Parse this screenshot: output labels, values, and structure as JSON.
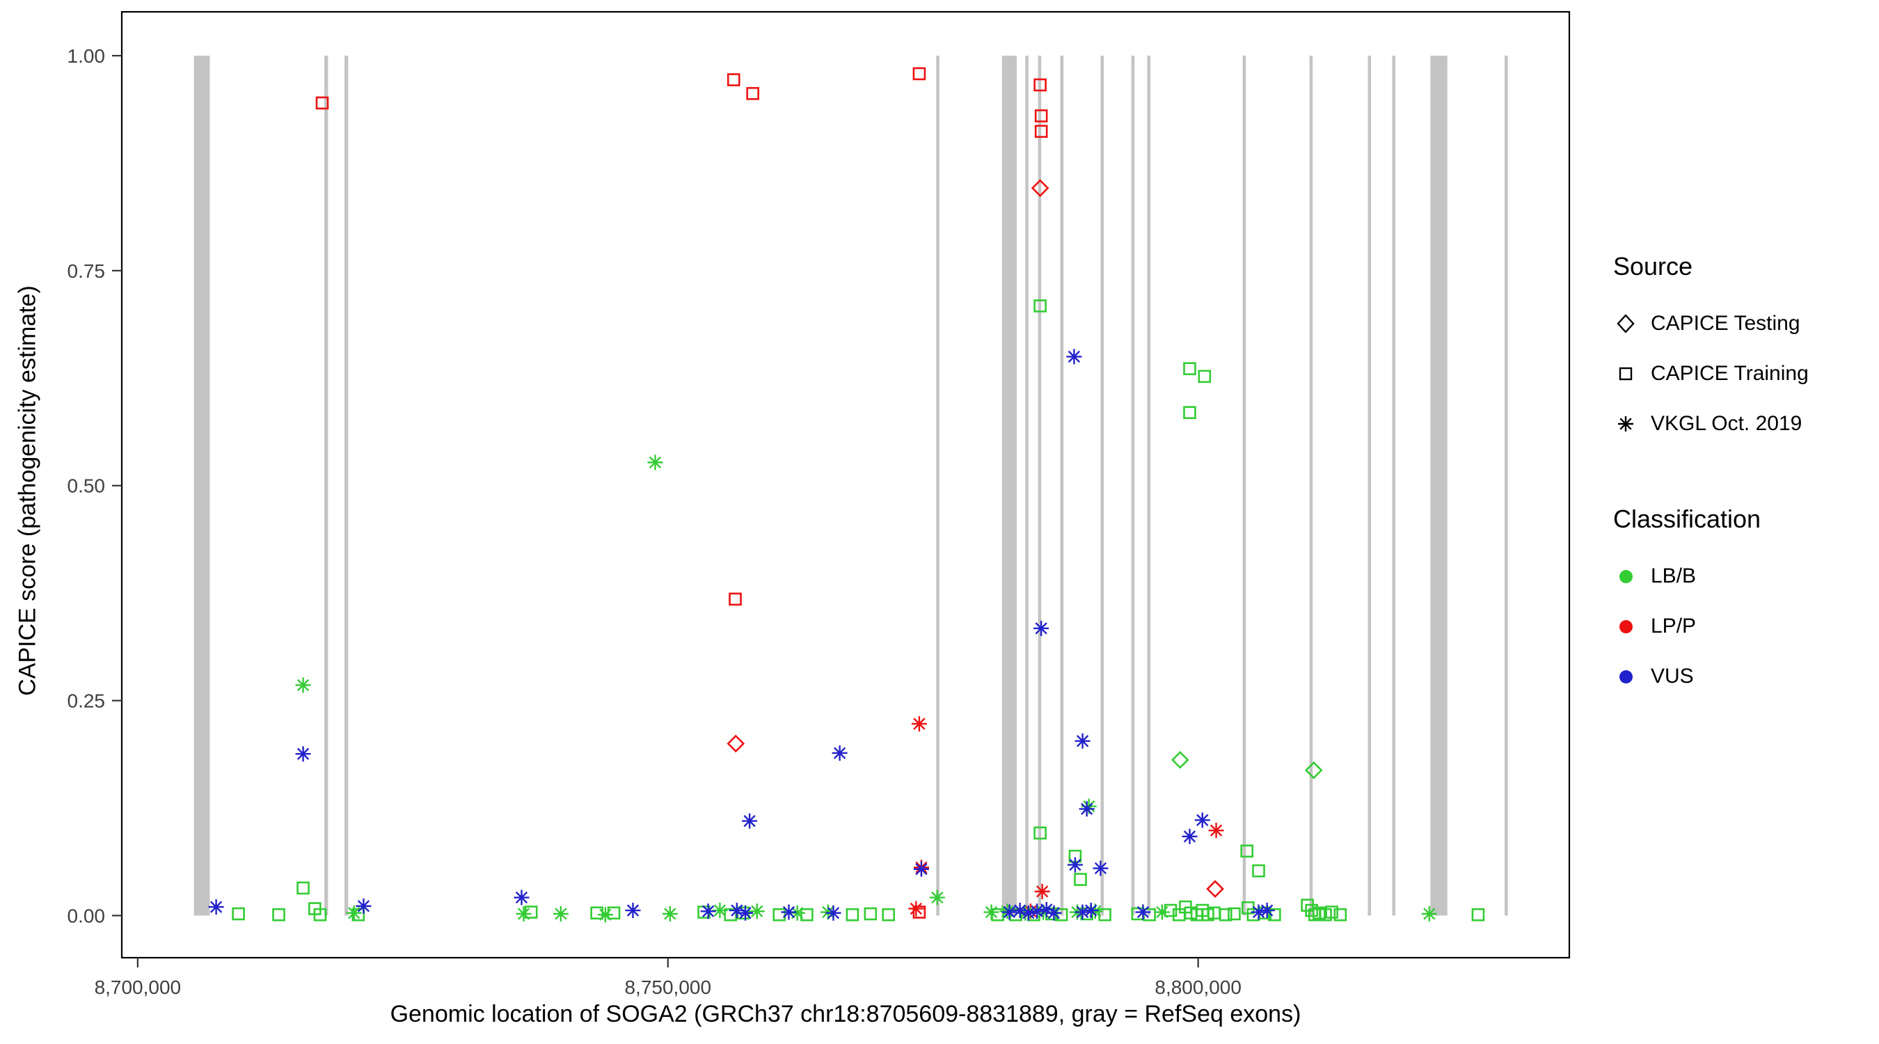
{
  "chart_data": {
    "type": "scatter",
    "title": "",
    "xlabel": "Genomic location of SOGA2 (GRCh37 chr18:8705609-8831889, gray = RefSeq exons)",
    "ylabel": "CAPICE score (pathogenicity estimate)",
    "x_domain": [
      8698500,
      8835000
    ],
    "y_domain": [
      -0.049,
      1.051
    ],
    "grid": false,
    "legend_position": "right",
    "x_ticks": [
      {
        "value": 8700000,
        "label": "8,700,000"
      },
      {
        "value": 8750000,
        "label": "8,750,000"
      },
      {
        "value": 8800000,
        "label": "8,800,000"
      }
    ],
    "y_ticks": [
      {
        "value": 0.0,
        "label": "0.00"
      },
      {
        "value": 0.25,
        "label": "0.25"
      },
      {
        "value": 0.5,
        "label": "0.50"
      },
      {
        "value": 0.75,
        "label": "0.75"
      },
      {
        "value": 1.0,
        "label": "1.00"
      }
    ],
    "colors": {
      "LB/B": "#33cc33",
      "LP/P": "#ee1111",
      "VUS": "#2222cc",
      "exon": "#c4c4c4",
      "axis_text": "#404040",
      "panel_border": "#000000"
    },
    "marker_map": {
      "training": "square",
      "testing": "diamond",
      "vkgl": "asterisk"
    },
    "source_labels": {
      "testing": "CAPICE Testing",
      "training": "CAPICE Training",
      "vkgl": "VKGL Oct. 2019"
    },
    "exon_format": [
      "genomic_start",
      "genomic_width"
    ],
    "exons": [
      [
        8705300,
        1500
      ],
      [
        8717600,
        350
      ],
      [
        8719500,
        350
      ],
      [
        8775300,
        300
      ],
      [
        8781500,
        1400
      ],
      [
        8783700,
        300
      ],
      [
        8784900,
        300
      ],
      [
        8787000,
        300
      ],
      [
        8790800,
        300
      ],
      [
        8793700,
        300
      ],
      [
        8795200,
        300
      ],
      [
        8804200,
        300
      ],
      [
        8810500,
        300
      ],
      [
        8816000,
        300
      ],
      [
        8818300,
        300
      ],
      [
        8821900,
        1600
      ],
      [
        8828900,
        300
      ]
    ],
    "point_format": [
      "genomic_position",
      "capice_score",
      "source",
      "classification"
    ],
    "points": [
      [
        8717400,
        0.945,
        "training",
        "LP/P"
      ],
      [
        8756200,
        0.972,
        "training",
        "LP/P"
      ],
      [
        8758000,
        0.956,
        "training",
        "LP/P"
      ],
      [
        8773700,
        0.979,
        "training",
        "LP/P"
      ],
      [
        8785100,
        0.966,
        "training",
        "LP/P"
      ],
      [
        8785200,
        0.93,
        "training",
        "LP/P"
      ],
      [
        8785200,
        0.912,
        "training",
        "LP/P"
      ],
      [
        8785100,
        0.846,
        "testing",
        "LP/P"
      ],
      [
        8756350,
        0.368,
        "training",
        "LP/P"
      ],
      [
        8756400,
        0.2,
        "testing",
        "LP/P"
      ],
      [
        8773700,
        0.223,
        "vkgl",
        "LP/P"
      ],
      [
        8773900,
        0.056,
        "vkgl",
        "LP/P"
      ],
      [
        8801700,
        0.099,
        "vkgl",
        "LP/P"
      ],
      [
        8801600,
        0.031,
        "testing",
        "LP/P"
      ],
      [
        8785300,
        0.028,
        "vkgl",
        "LP/P"
      ],
      [
        8773700,
        0.004,
        "training",
        "LP/P"
      ],
      [
        8773400,
        0.008,
        "vkgl",
        "LP/P"
      ],
      [
        8784200,
        0.005,
        "vkgl",
        "LP/P"
      ],
      [
        8715600,
        0.268,
        "vkgl",
        "LB/B"
      ],
      [
        8715600,
        0.032,
        "training",
        "LB/B"
      ],
      [
        8748800,
        0.527,
        "vkgl",
        "LB/B"
      ],
      [
        8785100,
        0.709,
        "training",
        "LB/B"
      ],
      [
        8799200,
        0.636,
        "training",
        "LB/B"
      ],
      [
        8800600,
        0.627,
        "training",
        "LB/B"
      ],
      [
        8799200,
        0.585,
        "training",
        "LB/B"
      ],
      [
        8798300,
        0.181,
        "testing",
        "LB/B"
      ],
      [
        8810900,
        0.169,
        "testing",
        "LB/B"
      ],
      [
        8785100,
        0.096,
        "training",
        "LB/B"
      ],
      [
        8788400,
        0.069,
        "training",
        "LB/B"
      ],
      [
        8804600,
        0.075,
        "training",
        "LB/B"
      ],
      [
        8805700,
        0.052,
        "training",
        "LB/B"
      ],
      [
        8775400,
        0.021,
        "vkgl",
        "LB/B"
      ],
      [
        8789700,
        0.127,
        "vkgl",
        "LB/B"
      ],
      [
        8788900,
        0.042,
        "training",
        "LB/B"
      ],
      [
        8709500,
        0.002,
        "training",
        "LB/B"
      ],
      [
        8713300,
        0.001,
        "training",
        "LB/B"
      ],
      [
        8716700,
        0.008,
        "training",
        "LB/B"
      ],
      [
        8717200,
        0.001,
        "training",
        "LB/B"
      ],
      [
        8720400,
        0.003,
        "vkgl",
        "LB/B"
      ],
      [
        8720800,
        0.001,
        "training",
        "LB/B"
      ],
      [
        8736400,
        0.002,
        "vkgl",
        "LB/B"
      ],
      [
        8737100,
        0.004,
        "training",
        "LB/B"
      ],
      [
        8739900,
        0.002,
        "vkgl",
        "LB/B"
      ],
      [
        8743300,
        0.003,
        "training",
        "LB/B"
      ],
      [
        8744100,
        0.001,
        "vkgl",
        "LB/B"
      ],
      [
        8744900,
        0.003,
        "training",
        "LB/B"
      ],
      [
        8750200,
        0.002,
        "vkgl",
        "LB/B"
      ],
      [
        8753400,
        0.004,
        "training",
        "LB/B"
      ],
      [
        8754900,
        0.006,
        "vkgl",
        "LB/B"
      ],
      [
        8755900,
        0.001,
        "training",
        "LB/B"
      ],
      [
        8757100,
        0.003,
        "training",
        "LB/B"
      ],
      [
        8758400,
        0.005,
        "vkgl",
        "LB/B"
      ],
      [
        8760500,
        0.001,
        "training",
        "LB/B"
      ],
      [
        8762200,
        0.003,
        "vkgl",
        "LB/B"
      ],
      [
        8763100,
        0.001,
        "training",
        "LB/B"
      ],
      [
        8765100,
        0.004,
        "vkgl",
        "LB/B"
      ],
      [
        8767400,
        0.001,
        "training",
        "LB/B"
      ],
      [
        8769100,
        0.002,
        "training",
        "LB/B"
      ],
      [
        8770800,
        0.001,
        "training",
        "LB/B"
      ],
      [
        8780500,
        0.004,
        "vkgl",
        "LB/B"
      ],
      [
        8781100,
        0.001,
        "training",
        "LB/B"
      ],
      [
        8782000,
        0.005,
        "vkgl",
        "LB/B"
      ],
      [
        8782800,
        0.001,
        "training",
        "LB/B"
      ],
      [
        8783700,
        0.003,
        "vkgl",
        "LB/B"
      ],
      [
        8784500,
        0.001,
        "training",
        "LB/B"
      ],
      [
        8785400,
        0.004,
        "vkgl",
        "LB/B"
      ],
      [
        8786200,
        0.002,
        "training",
        "LB/B"
      ],
      [
        8787100,
        0.001,
        "training",
        "LB/B"
      ],
      [
        8788600,
        0.004,
        "vkgl",
        "LB/B"
      ],
      [
        8789500,
        0.002,
        "training",
        "LB/B"
      ],
      [
        8790300,
        0.005,
        "vkgl",
        "LB/B"
      ],
      [
        8791200,
        0.001,
        "training",
        "LB/B"
      ],
      [
        8794300,
        0.002,
        "training",
        "LB/B"
      ],
      [
        8795400,
        0.001,
        "training",
        "LB/B"
      ],
      [
        8796600,
        0.004,
        "vkgl",
        "LB/B"
      ],
      [
        8797400,
        0.006,
        "training",
        "LB/B"
      ],
      [
        8798200,
        0.001,
        "training",
        "LB/B"
      ],
      [
        8798800,
        0.01,
        "training",
        "LB/B"
      ],
      [
        8799300,
        0.003,
        "training",
        "LB/B"
      ],
      [
        8799900,
        0.001,
        "training",
        "LB/B"
      ],
      [
        8800400,
        0.006,
        "training",
        "LB/B"
      ],
      [
        8800900,
        0.001,
        "training",
        "LB/B"
      ],
      [
        8801500,
        0.003,
        "training",
        "LB/B"
      ],
      [
        8802600,
        0.001,
        "training",
        "LB/B"
      ],
      [
        8803400,
        0.002,
        "training",
        "LB/B"
      ],
      [
        8804700,
        0.009,
        "training",
        "LB/B"
      ],
      [
        8805200,
        0.001,
        "training",
        "LB/B"
      ],
      [
        8806300,
        0.003,
        "training",
        "LB/B"
      ],
      [
        8807200,
        0.001,
        "training",
        "LB/B"
      ],
      [
        8810300,
        0.012,
        "training",
        "LB/B"
      ],
      [
        8810700,
        0.006,
        "training",
        "LB/B"
      ],
      [
        8811000,
        0.001,
        "training",
        "LB/B"
      ],
      [
        8811400,
        0.003,
        "training",
        "LB/B"
      ],
      [
        8812000,
        0.001,
        "training",
        "LB/B"
      ],
      [
        8812600,
        0.004,
        "training",
        "LB/B"
      ],
      [
        8813400,
        0.001,
        "training",
        "LB/B"
      ],
      [
        8821800,
        0.002,
        "vkgl",
        "LB/B"
      ],
      [
        8826400,
        0.001,
        "training",
        "LB/B"
      ],
      [
        8715600,
        0.188,
        "vkgl",
        "VUS"
      ],
      [
        8788300,
        0.65,
        "vkgl",
        "VUS"
      ],
      [
        8785200,
        0.334,
        "vkgl",
        "VUS"
      ],
      [
        8789100,
        0.203,
        "vkgl",
        "VUS"
      ],
      [
        8766200,
        0.189,
        "vkgl",
        "VUS"
      ],
      [
        8757700,
        0.11,
        "vkgl",
        "VUS"
      ],
      [
        8789500,
        0.124,
        "vkgl",
        "VUS"
      ],
      [
        8799200,
        0.092,
        "vkgl",
        "VUS"
      ],
      [
        8800400,
        0.111,
        "vkgl",
        "VUS"
      ],
      [
        8790800,
        0.055,
        "vkgl",
        "VUS"
      ],
      [
        8788400,
        0.059,
        "vkgl",
        "VUS"
      ],
      [
        8773900,
        0.054,
        "vkgl",
        "VUS"
      ],
      [
        8707400,
        0.01,
        "vkgl",
        "VUS"
      ],
      [
        8721300,
        0.011,
        "vkgl",
        "VUS"
      ],
      [
        8736200,
        0.021,
        "vkgl",
        "VUS"
      ],
      [
        8746700,
        0.006,
        "vkgl",
        "VUS"
      ],
      [
        8753800,
        0.005,
        "vkgl",
        "VUS"
      ],
      [
        8756500,
        0.006,
        "vkgl",
        "VUS"
      ],
      [
        8757300,
        0.003,
        "vkgl",
        "VUS"
      ],
      [
        8761400,
        0.004,
        "vkgl",
        "VUS"
      ],
      [
        8765600,
        0.003,
        "vkgl",
        "VUS"
      ],
      [
        8782200,
        0.004,
        "vkgl",
        "VUS"
      ],
      [
        8783200,
        0.006,
        "vkgl",
        "VUS"
      ],
      [
        8784000,
        0.003,
        "vkgl",
        "VUS"
      ],
      [
        8784800,
        0.005,
        "vkgl",
        "VUS"
      ],
      [
        8785700,
        0.007,
        "vkgl",
        "VUS"
      ],
      [
        8786400,
        0.003,
        "vkgl",
        "VUS"
      ],
      [
        8789100,
        0.004,
        "vkgl",
        "VUS"
      ],
      [
        8789900,
        0.006,
        "vkgl",
        "VUS"
      ],
      [
        8794800,
        0.004,
        "vkgl",
        "VUS"
      ],
      [
        8805700,
        0.004,
        "vkgl",
        "VUS"
      ],
      [
        8806500,
        0.006,
        "vkgl",
        "VUS"
      ]
    ]
  },
  "legend": {
    "source": {
      "title": "Source",
      "items": [
        {
          "label": "CAPICE Testing",
          "marker": "diamond"
        },
        {
          "label": "CAPICE Training",
          "marker": "square"
        },
        {
          "label": "VKGL Oct. 2019",
          "marker": "asterisk"
        }
      ]
    },
    "classification": {
      "title": "Classification",
      "items": [
        {
          "label": "LB/B",
          "color": "#33cc33"
        },
        {
          "label": "LP/P",
          "color": "#ee1111"
        },
        {
          "label": "VUS",
          "color": "#2222cc"
        }
      ]
    }
  }
}
